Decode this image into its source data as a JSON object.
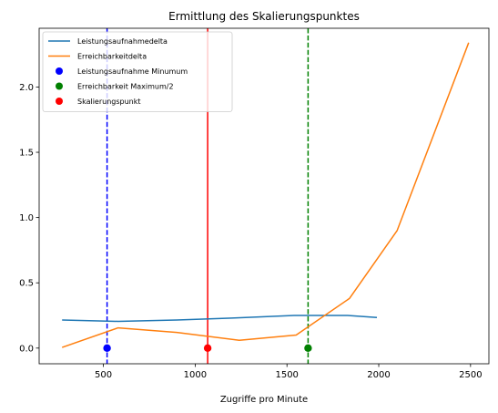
{
  "chart_data": {
    "type": "line",
    "title": "Ermittlung des Skalierungspunktes",
    "xlabel": "Zugriffe pro Minute",
    "ylabel": "",
    "xlim": [
      150,
      2600
    ],
    "ylim": [
      -0.12,
      2.45
    ],
    "xticks": [
      500,
      1000,
      1500,
      2000,
      2500
    ],
    "yticks": [
      0.0,
      0.5,
      1.0,
      1.5,
      2.0
    ],
    "ytick_labels": [
      "0.0",
      "0.5",
      "1.0",
      "1.5",
      "2.0"
    ],
    "grid": false,
    "legend_position": "upper-left",
    "series": [
      {
        "name": "Leistungsaufnahmedelta",
        "kind": "line",
        "color": "#1f77b4",
        "x": [
          275,
          580,
          900,
          1200,
          1540,
          1830,
          1990
        ],
        "y": [
          0.215,
          0.205,
          0.215,
          0.23,
          0.25,
          0.25,
          0.235
        ]
      },
      {
        "name": "Erreichbarkeitdelta",
        "kind": "line",
        "color": "#ff7f0e",
        "x": [
          275,
          580,
          900,
          1240,
          1550,
          1840,
          2100,
          2490
        ],
        "y": [
          0.005,
          0.155,
          0.12,
          0.06,
          0.1,
          0.38,
          0.9,
          2.34
        ]
      },
      {
        "name": "Leistungsaufnahme Minumum",
        "kind": "point",
        "color": "#0000ff",
        "x": [
          520
        ],
        "y": [
          0.0
        ],
        "vline": {
          "x": 520,
          "style": "dashed"
        }
      },
      {
        "name": "Erreichbarkeit Maximum/2",
        "kind": "point",
        "color": "#008000",
        "x": [
          1615
        ],
        "y": [
          0.0
        ],
        "vline": {
          "x": 1615,
          "style": "dashed"
        }
      },
      {
        "name": "Skalierungspunkt",
        "kind": "point",
        "color": "#ff0000",
        "x": [
          1068
        ],
        "y": [
          0.0
        ],
        "vline": {
          "x": 1068,
          "style": "solid"
        }
      }
    ]
  }
}
